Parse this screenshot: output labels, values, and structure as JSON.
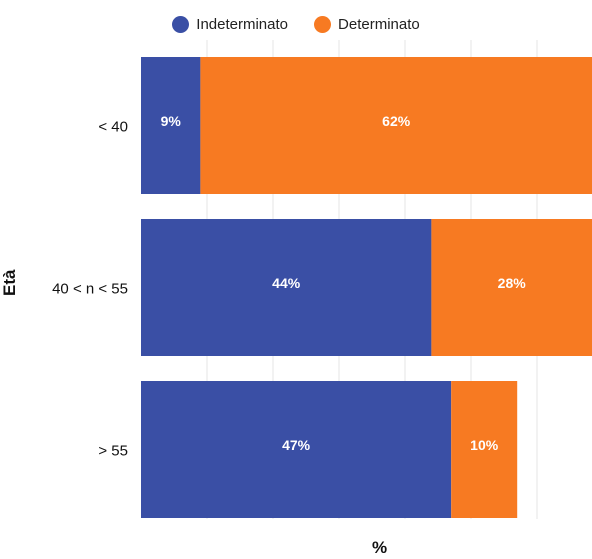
{
  "chart_data": {
    "type": "bar",
    "orientation": "horizontal",
    "stacked": true,
    "categories": [
      "< 40",
      "40 < n < 55",
      "> 55"
    ],
    "series": [
      {
        "name": "Indeterminato",
        "values": [
          9,
          44,
          47
        ],
        "labels": [
          "9%",
          "44%",
          "47%"
        ],
        "color": "#3a4fa5"
      },
      {
        "name": "Determinato",
        "values": [
          62,
          28,
          10
        ],
        "labels": [
          "62%",
          "28%",
          "10%"
        ],
        "color": "#f77a22"
      }
    ],
    "xlabel": "%",
    "ylabel": "Età",
    "xlim": [
      0,
      69
    ],
    "grid": true,
    "legend_position": "top-center"
  }
}
